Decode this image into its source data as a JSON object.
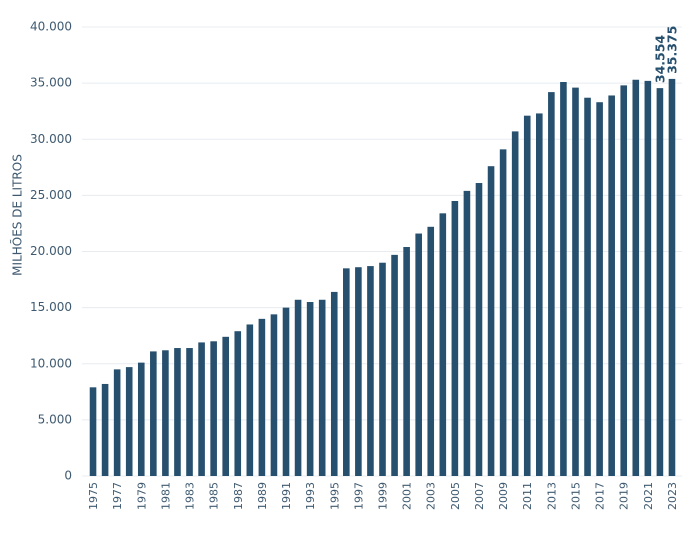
{
  "chart_data": {
    "type": "bar",
    "y_label": "MILHÕES DE LITROS",
    "categories": [
      "1975",
      null,
      "1977",
      null,
      "1979",
      null,
      "1981",
      null,
      "1983",
      null,
      "1985",
      null,
      "1987",
      null,
      "1989",
      null,
      "1991",
      null,
      "1993",
      null,
      "1995",
      null,
      "1997",
      null,
      "1999",
      null,
      "2001",
      null,
      "2003",
      null,
      "2005",
      null,
      "2007",
      null,
      "2009",
      null,
      "2011",
      null,
      "2013",
      null,
      "2015",
      null,
      "2017",
      null,
      "2019",
      null,
      "2021",
      null,
      "2023"
    ],
    "values": [
      7900,
      8200,
      9500,
      9700,
      10100,
      11100,
      11200,
      11400,
      11400,
      11900,
      12000,
      12400,
      12900,
      13500,
      14000,
      14400,
      15000,
      15700,
      15500,
      15700,
      16400,
      18500,
      18600,
      18700,
      19000,
      19700,
      20400,
      21600,
      22200,
      23400,
      24500,
      25400,
      26100,
      27600,
      29100,
      30700,
      32100,
      32300,
      34200,
      35100,
      34600,
      33700,
      33300,
      33900,
      34800,
      35300,
      35200,
      34554,
      35375
    ],
    "value_labels": [
      null,
      null,
      null,
      null,
      null,
      null,
      null,
      null,
      null,
      null,
      null,
      null,
      null,
      null,
      null,
      null,
      null,
      null,
      null,
      null,
      null,
      null,
      null,
      null,
      null,
      null,
      null,
      null,
      null,
      null,
      null,
      null,
      null,
      null,
      null,
      null,
      null,
      null,
      null,
      null,
      null,
      null,
      null,
      null,
      null,
      null,
      null,
      "34.554",
      "35.375"
    ],
    "color": "#27506e",
    "ylim": [
      0,
      40000
    ],
    "yticks": [
      0,
      {
        "value": 5000,
        "label": "5.000"
      },
      {
        "value": 10000,
        "label": "10.000"
      },
      {
        "value": 15000,
        "label": "15.000"
      },
      {
        "value": 20000,
        "label": "20.000"
      },
      {
        "value": 25000,
        "label": "25.000"
      },
      {
        "value": 30000,
        "label": "30.000"
      },
      {
        "value": 35000,
        "label": "35.000"
      },
      {
        "value": 40000,
        "label": "40.000"
      }
    ],
    "grid": true
  }
}
